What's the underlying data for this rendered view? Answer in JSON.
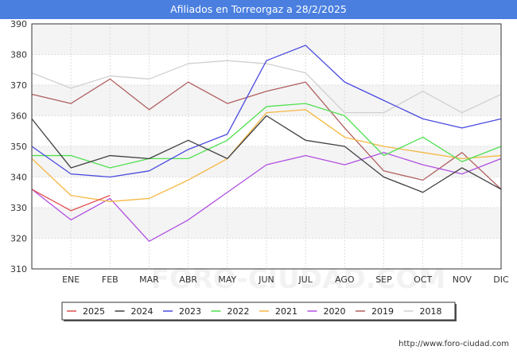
{
  "chart_data": {
    "type": "line",
    "title": "Afiliados en Torreorgaz a 28/2/2025",
    "source": "http://www.foro-ciudad.com",
    "watermark": "FORO-CIUDAD.COM",
    "x": [
      "",
      "ENE",
      "FEB",
      "MAR",
      "ABR",
      "MAY",
      "JUN",
      "JUL",
      "AGO",
      "SEP",
      "OCT",
      "NOV",
      "DIC"
    ],
    "ylim": [
      310,
      390
    ],
    "yticks": [
      310,
      320,
      330,
      340,
      350,
      360,
      370,
      380,
      390
    ],
    "grid": true,
    "legend_position": "bottom",
    "series": [
      {
        "name": "2025",
        "color": "#e05050",
        "values": [
          336,
          329,
          334,
          null,
          null,
          null,
          null,
          null,
          null,
          null,
          null,
          null,
          null
        ]
      },
      {
        "name": "2024",
        "color": "#404040",
        "values": [
          359,
          343,
          347,
          346,
          352,
          346,
          360,
          352,
          350,
          340,
          335,
          343,
          336
        ]
      },
      {
        "name": "2023",
        "color": "#4a4ae0",
        "values": [
          350,
          341,
          340,
          342,
          349,
          354,
          378,
          383,
          371,
          365,
          359,
          356,
          359
        ]
      },
      {
        "name": "2022",
        "color": "#50e050",
        "values": [
          347,
          347,
          343,
          346,
          346,
          352,
          363,
          364,
          360,
          347,
          353,
          345,
          350
        ]
      },
      {
        "name": "2021",
        "color": "#f5b845",
        "values": [
          346,
          334,
          332,
          333,
          339,
          346,
          361,
          362,
          353,
          350,
          348,
          346,
          347
        ]
      },
      {
        "name": "2020",
        "color": "#b050e0",
        "values": [
          336,
          326,
          333,
          319,
          326,
          335,
          344,
          347,
          344,
          348,
          344,
          341,
          346
        ]
      },
      {
        "name": "2019",
        "color": "#b06060",
        "values": [
          367,
          364,
          372,
          362,
          371,
          364,
          368,
          371,
          356,
          342,
          339,
          348,
          336
        ]
      },
      {
        "name": "2018",
        "color": "#d0d0d0",
        "values": [
          374,
          369,
          373,
          372,
          377,
          378,
          377,
          374,
          361,
          361,
          368,
          361,
          367
        ]
      }
    ]
  }
}
